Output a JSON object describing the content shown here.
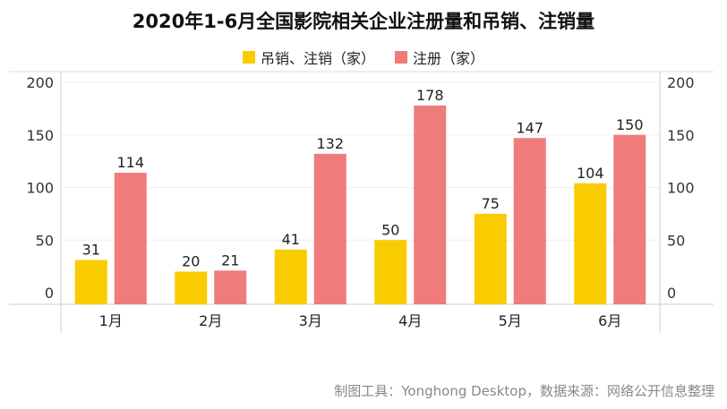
{
  "chart_data": {
    "type": "bar",
    "title": "2020年1-6月全国影院相关企业注册量和吊销、注销量",
    "categories": [
      "1月",
      "2月",
      "3月",
      "4月",
      "5月",
      "6月"
    ],
    "series": [
      {
        "name": "吊销、注销（家）",
        "values": [
          31,
          20,
          41,
          50,
          75,
          104
        ],
        "color": "#f8cc00"
      },
      {
        "name": "注册（家）",
        "values": [
          114,
          21,
          132,
          178,
          147,
          150
        ],
        "color": "#f07b7b"
      }
    ],
    "ylim": [
      0,
      200
    ],
    "yticks": [
      0,
      50,
      100,
      150,
      200
    ],
    "grid": true,
    "legend_position": "top-center",
    "data_labels": true,
    "secondary_axis_mirrored": true
  },
  "footer": {
    "text": "制图工具：Yonghong Desktop，数据来源：网络公开信息整理"
  }
}
